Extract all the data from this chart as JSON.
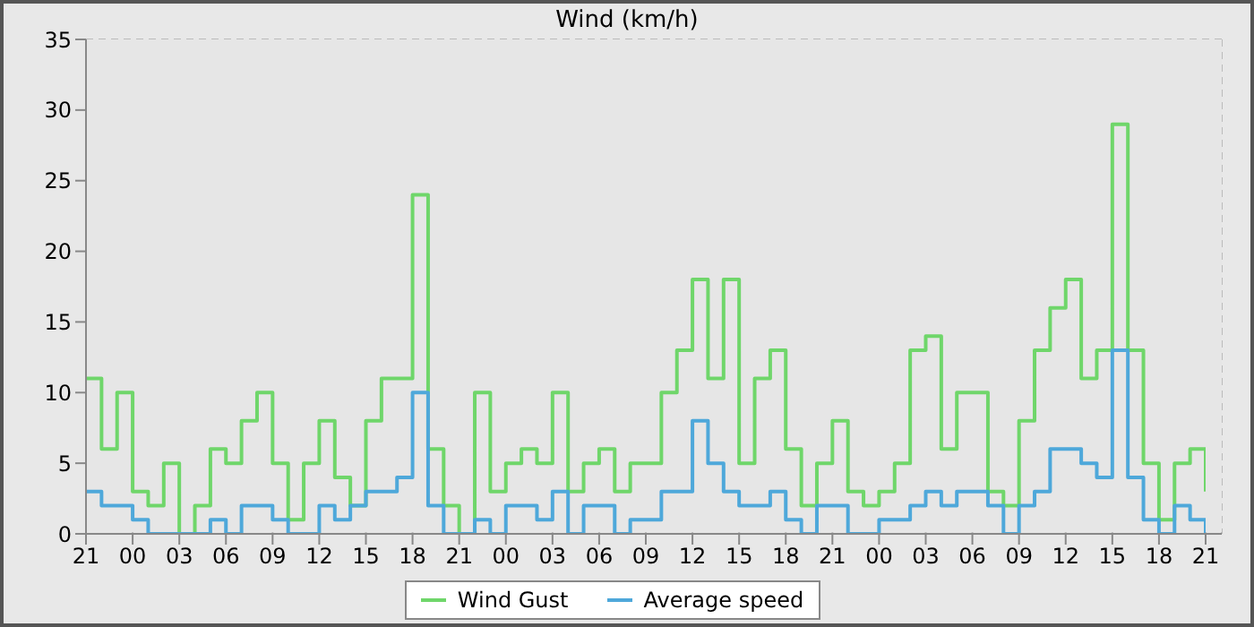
{
  "chart_data": {
    "type": "step",
    "title": "Wind (km/h)",
    "categories": [
      "21",
      null,
      null,
      "00",
      null,
      null,
      "03",
      null,
      null,
      "06",
      null,
      null,
      "09",
      null,
      null,
      "12",
      null,
      null,
      "15",
      null,
      null,
      "18",
      null,
      null,
      "21",
      null,
      null,
      "00",
      null,
      null,
      "03",
      null,
      null,
      "06",
      null,
      null,
      "09",
      null,
      null,
      "12",
      null,
      null,
      "15",
      null,
      null,
      "18",
      null,
      null,
      "21",
      null,
      null,
      "00",
      null,
      null,
      "03",
      null,
      null,
      "06",
      null,
      null,
      "09",
      null,
      null,
      "12",
      null,
      null,
      "15",
      null,
      null,
      "18",
      null,
      null,
      "21"
    ],
    "series": [
      {
        "name": "Wind Gust",
        "color": "#6fd66a",
        "values": [
          11,
          6,
          10,
          3,
          2,
          5,
          0,
          2,
          6,
          5,
          8,
          10,
          5,
          1,
          5,
          8,
          4,
          2,
          8,
          11,
          11,
          24,
          6,
          2,
          0,
          10,
          3,
          5,
          6,
          5,
          10,
          3,
          5,
          6,
          3,
          5,
          5,
          10,
          13,
          18,
          11,
          18,
          5,
          11,
          13,
          6,
          2,
          5,
          8,
          3,
          2,
          3,
          5,
          13,
          14,
          6,
          10,
          10,
          3,
          2,
          8,
          13,
          16,
          18,
          11,
          13,
          29,
          13,
          5,
          1,
          5,
          6,
          3
        ]
      },
      {
        "name": "Average speed",
        "color": "#4ea8da",
        "values": [
          3,
          2,
          2,
          1,
          0,
          0,
          0,
          0,
          1,
          0,
          2,
          2,
          1,
          0,
          0,
          2,
          1,
          2,
          3,
          3,
          4,
          10,
          2,
          0,
          0,
          1,
          0,
          2,
          2,
          1,
          3,
          0,
          2,
          2,
          0,
          1,
          1,
          3,
          3,
          8,
          5,
          3,
          2,
          2,
          3,
          1,
          0,
          2,
          2,
          0,
          0,
          1,
          1,
          2,
          3,
          2,
          3,
          3,
          2,
          0,
          2,
          3,
          6,
          6,
          5,
          4,
          13,
          4,
          1,
          0,
          2,
          1,
          0
        ]
      }
    ],
    "ylim": [
      0,
      35
    ],
    "yticks": [
      0,
      5,
      10,
      15,
      20,
      25,
      30,
      35
    ],
    "grid": true,
    "legend": "bottom",
    "marker": "none",
    "line_style": "solid"
  }
}
